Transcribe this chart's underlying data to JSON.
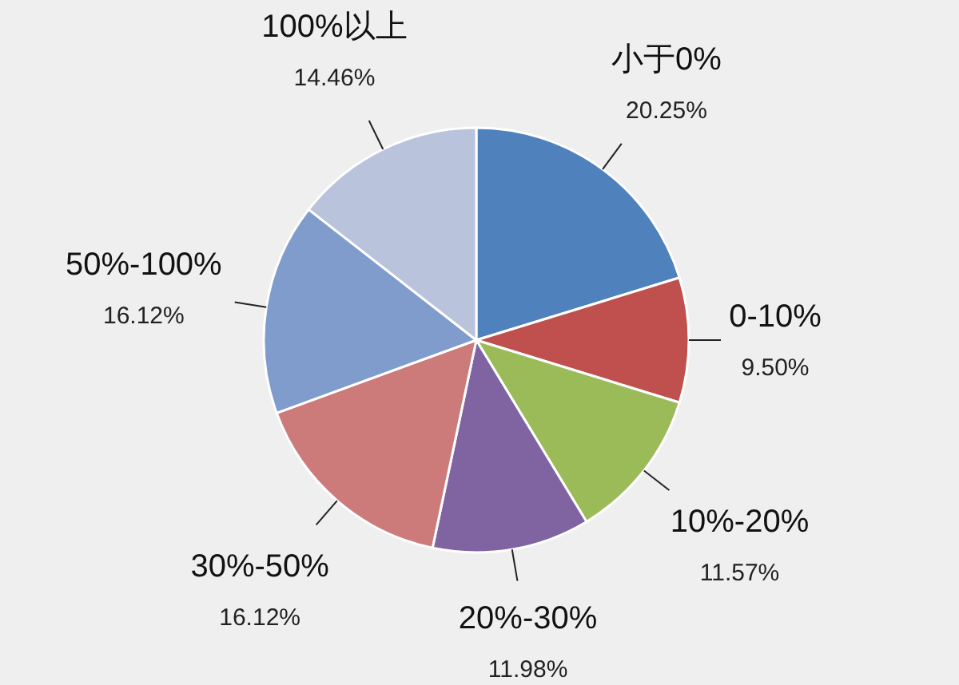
{
  "chart_data": {
    "type": "pie",
    "categories": [
      "小于0%",
      "0-10%",
      "10%-20%",
      "20%-30%",
      "30%-50%",
      "50%-100%",
      "100%以上"
    ],
    "values": [
      20.25,
      9.5,
      11.57,
      11.98,
      16.12,
      16.12,
      14.46
    ],
    "colors": [
      "#4f81bd",
      "#c0504d",
      "#9bbb59",
      "#8064a2",
      "#cd7a7b",
      "#7f9ccc",
      "#b9c3dc"
    ],
    "value_labels": [
      "20.25%",
      "9.50%",
      "11.57%",
      "11.98%",
      "16.12%",
      "16.12%",
      "14.46%"
    ]
  }
}
